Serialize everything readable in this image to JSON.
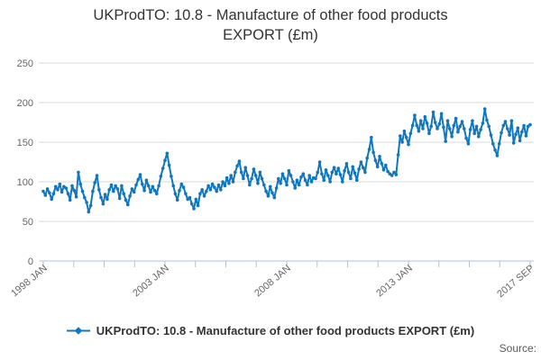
{
  "title": {
    "line1": "UKProdTO: 10.8 - Manufacture of other food products",
    "line2": "EXPORT (£m)"
  },
  "legend": {
    "label": "UKProdTO: 10.8 - Manufacture of other food products EXPORT (£m)",
    "marker": "line-with-diamond-icon"
  },
  "source_label": "Source:",
  "colors": {
    "line": "#1076bd",
    "grid": "#d8d8d8",
    "axis": "#afc2de",
    "tick_label": "#666666",
    "title_text": "#333333",
    "source_text": "#595959"
  },
  "chart_data": {
    "type": "line",
    "title": "UKProdTO: 10.8 - Manufacture of other food products EXPORT (£m)",
    "xlabel": "",
    "ylabel": "",
    "ylim": [
      0,
      250
    ],
    "y_ticks": [
      0,
      50,
      100,
      150,
      200,
      250
    ],
    "x_tick_labels": [
      "1998 JAN",
      "2003 JAN",
      "2008 JAN",
      "2013 JAN",
      "2017 SEP"
    ],
    "x_minor_tick_count": 17,
    "x_label_every_nth_tick": 4,
    "grid": "horizontal",
    "legend_position": "bottom",
    "series": [
      {
        "name": "UKProdTO: 10.8 - Manufacture of other food products EXPORT (£m)",
        "color": "#1076bd",
        "x_unit": "month",
        "x_range": [
          "1998 JAN",
          "2017 SEP"
        ],
        "values": [
          88,
          83,
          91,
          86,
          78,
          85,
          94,
          90,
          97,
          87,
          94,
          92,
          85,
          77,
          95,
          89,
          81,
          112,
          97,
          88,
          80,
          74,
          62,
          70,
          88,
          99,
          108,
          90,
          80,
          72,
          84,
          78,
          90,
          96,
          88,
          95,
          91,
          79,
          95,
          85,
          77,
          71,
          82,
          91,
          87,
          96,
          103,
          109,
          97,
          89,
          102,
          95,
          87,
          94,
          89,
          85,
          95,
          107,
          117,
          127,
          136,
          121,
          107,
          95,
          85,
          77,
          89,
          97,
          93,
          85,
          78,
          80,
          72,
          66,
          78,
          70,
          85,
          90,
          82,
          88,
          95,
          90,
          97,
          93,
          88,
          96,
          90,
          100,
          95,
          105,
          98,
          108,
          100,
          112,
          120,
          126,
          112,
          104,
          118,
          108,
          96,
          104,
          116,
          108,
          98,
          112,
          104,
          96,
          88,
          82,
          94,
          86,
          80,
          92,
          104,
          98,
          110,
          104,
          96,
          114,
          108,
          100,
          92,
          102,
          96,
          106,
          110,
          102,
          96,
          108,
          100,
          105,
          104,
          112,
          125,
          110,
          102,
          115,
          108,
          100,
          112,
          118,
          110,
          117,
          109,
          100,
          114,
          123,
          112,
          104,
          119,
          111,
          102,
          116,
          125,
          118,
          112,
          130,
          141,
          156,
          137,
          127,
          119,
          132,
          123,
          115,
          121,
          113,
          110,
          108,
          112,
          109,
          134,
          158,
          150,
          164,
          156,
          147,
          161,
          171,
          184,
          171,
          164,
          177,
          167,
          182,
          174,
          161,
          170,
          188,
          175,
          167,
          173,
          186,
          169,
          151,
          177,
          167,
          157,
          171,
          180,
          163,
          170,
          176,
          167,
          155,
          148,
          166,
          177,
          161,
          170,
          157,
          166,
          174,
          192,
          178,
          170,
          159,
          148,
          140,
          133,
          148,
          162,
          171,
          176,
          167,
          159,
          177,
          149,
          160,
          168,
          152,
          163,
          171,
          158,
          170,
          172
        ]
      }
    ]
  }
}
